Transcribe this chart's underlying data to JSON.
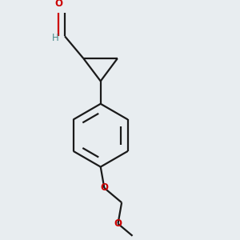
{
  "bg_color": "#e8edf0",
  "bond_color": "#1a1a1a",
  "oxygen_color": "#cc0000",
  "h_color": "#4a8a8a",
  "line_width": 1.6,
  "dbo": 0.012,
  "figsize": [
    3.0,
    3.0
  ],
  "dpi": 100,
  "xlim": [
    0.15,
    0.85
  ],
  "ylim": [
    0.05,
    0.95
  ]
}
